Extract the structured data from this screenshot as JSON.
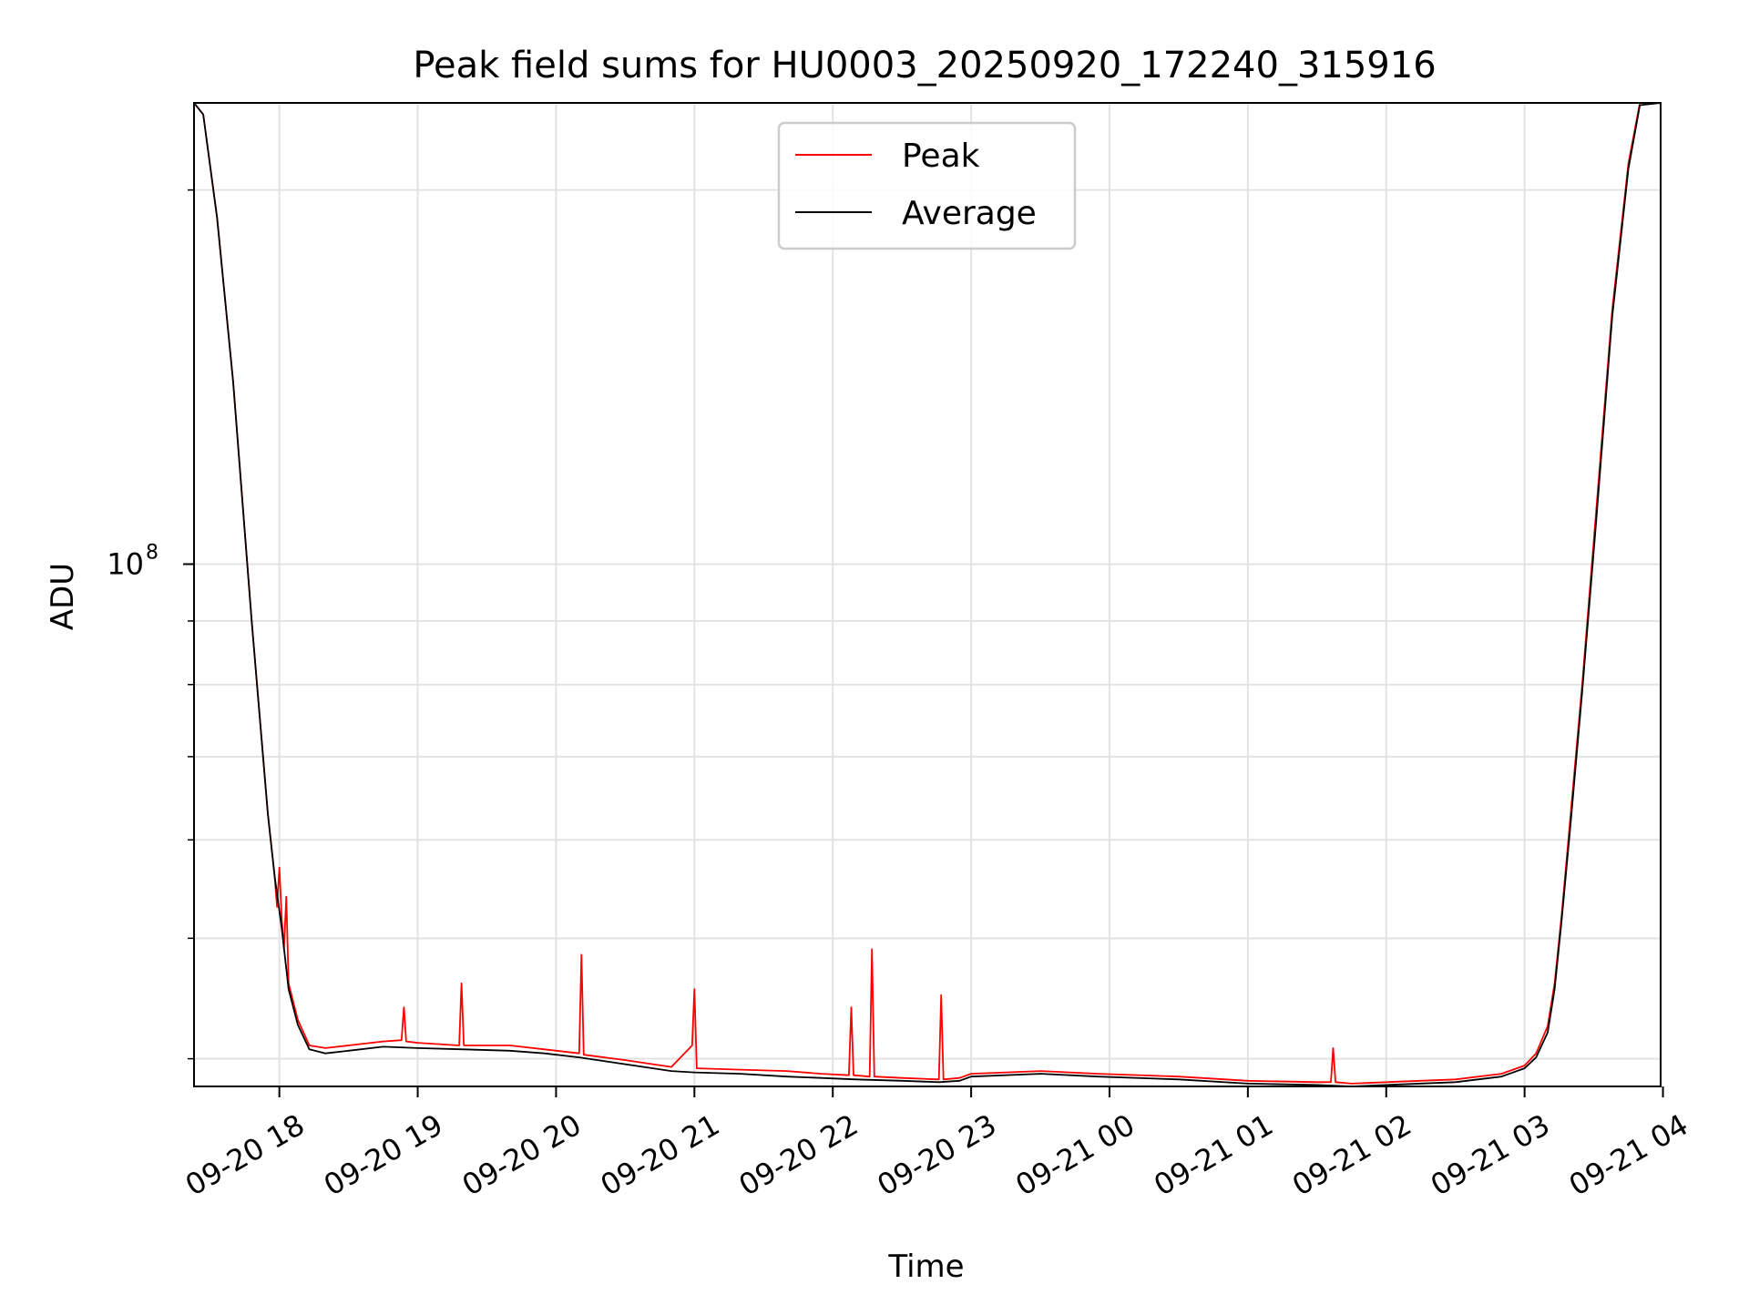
{
  "chart_data": {
    "type": "line",
    "title": "Peak field sums for HU0003_20250920_172240_315916",
    "xlabel": "Time",
    "ylabel": "ADU",
    "y_scale": "log",
    "ylim": [
      38000000,
      235000000
    ],
    "xlim": [
      "2025-09-20 17:23",
      "2025-09-21 03:59"
    ],
    "y_tick_labels": [
      {
        "label": "10",
        "exponent": "8",
        "value": 100000000
      }
    ],
    "y_minor_ticks": [
      40000000,
      50000000,
      60000000,
      70000000,
      80000000,
      90000000,
      200000000
    ],
    "x_tick_labels": [
      {
        "label": "09-20 18",
        "value": "2025-09-20 18:00"
      },
      {
        "label": "09-20 19",
        "value": "2025-09-20 19:00"
      },
      {
        "label": "09-20 20",
        "value": "2025-09-20 20:00"
      },
      {
        "label": "09-20 21",
        "value": "2025-09-20 21:00"
      },
      {
        "label": "09-20 22",
        "value": "2025-09-20 22:00"
      },
      {
        "label": "09-20 23",
        "value": "2025-09-20 23:00"
      },
      {
        "label": "09-21 00",
        "value": "2025-09-21 00:00"
      },
      {
        "label": "09-21 01",
        "value": "2025-09-21 01:00"
      },
      {
        "label": "09-21 02",
        "value": "2025-09-21 02:00"
      },
      {
        "label": "09-21 03",
        "value": "2025-09-21 03:00"
      },
      {
        "label": "09-21 04",
        "value": "2025-09-21 04:00"
      }
    ],
    "grid": true,
    "legend_position": "top-center",
    "colors": {
      "Peak": "#ff0000",
      "Average": "#000000"
    },
    "series": [
      {
        "name": "Peak",
        "x": [
          "2025-09-20 17:23",
          "2025-09-20 17:27",
          "2025-09-20 17:33",
          "2025-09-20 17:40",
          "2025-09-20 17:48",
          "2025-09-20 17:55",
          "2025-09-20 17:58",
          "2025-09-20 17:59",
          "2025-09-20 18:00",
          "2025-09-20 18:01",
          "2025-09-20 18:02",
          "2025-09-20 18:03",
          "2025-09-20 18:04",
          "2025-09-20 18:08",
          "2025-09-20 18:13",
          "2025-09-20 18:20",
          "2025-09-20 18:30",
          "2025-09-20 18:45",
          "2025-09-20 18:53",
          "2025-09-20 18:54",
          "2025-09-20 18:55",
          "2025-09-20 19:00",
          "2025-09-20 19:18",
          "2025-09-20 19:19",
          "2025-09-20 19:20",
          "2025-09-20 19:40",
          "2025-09-20 19:55",
          "2025-09-20 20:10",
          "2025-09-20 20:11",
          "2025-09-20 20:12",
          "2025-09-20 20:30",
          "2025-09-20 20:50",
          "2025-09-20 20:59",
          "2025-09-20 21:00",
          "2025-09-20 21:01",
          "2025-09-20 21:20",
          "2025-09-20 21:40",
          "2025-09-20 21:55",
          "2025-09-20 22:07",
          "2025-09-20 22:08",
          "2025-09-20 22:09",
          "2025-09-20 22:16",
          "2025-09-20 22:17",
          "2025-09-20 22:18",
          "2025-09-20 22:30",
          "2025-09-20 22:46",
          "2025-09-20 22:47",
          "2025-09-20 22:48",
          "2025-09-20 22:55",
          "2025-09-20 23:00",
          "2025-09-20 23:30",
          "2025-09-20 23:55",
          "2025-09-21 00:30",
          "2025-09-21 01:00",
          "2025-09-21 01:30",
          "2025-09-21 01:36",
          "2025-09-21 01:37",
          "2025-09-21 01:38",
          "2025-09-21 01:45",
          "2025-09-21 02:00",
          "2025-09-21 02:30",
          "2025-09-21 02:50",
          "2025-09-21 03:00",
          "2025-09-21 03:05",
          "2025-09-21 03:10",
          "2025-09-21 03:13",
          "2025-09-21 03:16",
          "2025-09-21 03:20",
          "2025-09-21 03:25",
          "2025-09-21 03:31",
          "2025-09-21 03:38",
          "2025-09-21 03:45",
          "2025-09-21 03:50",
          "2025-09-21 03:59"
        ],
        "y": [
          235000000,
          230000000,
          190000000,
          140000000,
          90000000,
          63000000,
          56000000,
          53000000,
          57000000,
          52000000,
          49000000,
          54000000,
          46000000,
          43000000,
          41000000,
          40800000,
          41000000,
          41300000,
          41400000,
          44000000,
          41300000,
          41200000,
          41000000,
          46000000,
          41000000,
          41000000,
          40700000,
          40400000,
          48500000,
          40300000,
          39900000,
          39400000,
          41000000,
          45500000,
          39300000,
          39200000,
          39100000,
          38900000,
          38800000,
          44000000,
          38800000,
          38700000,
          49000000,
          38700000,
          38600000,
          38500000,
          45000000,
          38500000,
          38600000,
          38900000,
          39100000,
          38900000,
          38700000,
          38400000,
          38300000,
          38300000,
          40800000,
          38300000,
          38200000,
          38300000,
          38500000,
          38900000,
          39500000,
          40400000,
          42500000,
          46000000,
          52000000,
          63000000,
          80000000,
          110000000,
          160000000,
          210000000,
          235000000,
          235000000
        ]
      },
      {
        "name": "Average",
        "x": [
          "2025-09-20 17:23",
          "2025-09-20 17:27",
          "2025-09-20 17:33",
          "2025-09-20 17:40",
          "2025-09-20 17:48",
          "2025-09-20 17:55",
          "2025-09-20 17:58",
          "2025-09-20 18:01",
          "2025-09-20 18:04",
          "2025-09-20 18:08",
          "2025-09-20 18:13",
          "2025-09-20 18:20",
          "2025-09-20 18:30",
          "2025-09-20 18:45",
          "2025-09-20 19:00",
          "2025-09-20 19:20",
          "2025-09-20 19:40",
          "2025-09-20 19:55",
          "2025-09-20 20:10",
          "2025-09-20 20:30",
          "2025-09-20 20:50",
          "2025-09-20 21:00",
          "2025-09-20 21:20",
          "2025-09-20 21:40",
          "2025-09-20 21:55",
          "2025-09-20 22:10",
          "2025-09-20 22:30",
          "2025-09-20 22:46",
          "2025-09-20 22:55",
          "2025-09-20 23:00",
          "2025-09-20 23:30",
          "2025-09-20 23:55",
          "2025-09-21 00:30",
          "2025-09-21 01:00",
          "2025-09-21 01:30",
          "2025-09-21 01:45",
          "2025-09-21 02:00",
          "2025-09-21 02:30",
          "2025-09-21 02:50",
          "2025-09-21 03:00",
          "2025-09-21 03:05",
          "2025-09-21 03:10",
          "2025-09-21 03:13",
          "2025-09-21 03:16",
          "2025-09-21 03:20",
          "2025-09-21 03:25",
          "2025-09-21 03:31",
          "2025-09-21 03:38",
          "2025-09-21 03:45",
          "2025-09-21 03:50",
          "2025-09-21 03:59"
        ],
        "y": [
          235000000,
          230000000,
          190000000,
          140000000,
          90000000,
          63000000,
          56000000,
          51000000,
          45500000,
          42600000,
          40700000,
          40400000,
          40600000,
          40900000,
          40800000,
          40700000,
          40600000,
          40400000,
          40100000,
          39600000,
          39100000,
          39000000,
          38900000,
          38700000,
          38600000,
          38500000,
          38400000,
          38300000,
          38400000,
          38700000,
          38900000,
          38700000,
          38500000,
          38200000,
          38100000,
          38000000,
          38100000,
          38300000,
          38700000,
          39300000,
          40100000,
          42000000,
          45500000,
          51500000,
          62000000,
          79000000,
          108000000,
          158000000,
          208000000,
          234000000,
          235000000
        ]
      }
    ]
  }
}
